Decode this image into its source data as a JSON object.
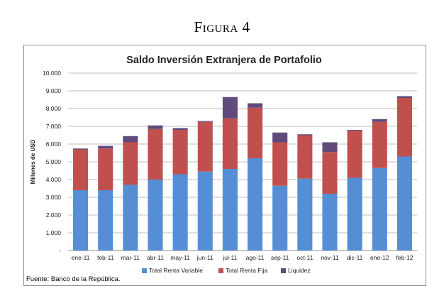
{
  "figure_label": "Figura 4",
  "source_note": "Fuente: Banco de la República.",
  "chart_data": {
    "type": "bar",
    "stacked": true,
    "title": "Saldo Inversión Extranjera de Portafolio",
    "xlabel": "",
    "ylabel": "Millones de USD",
    "ylim": [
      0,
      10000
    ],
    "yticks": [
      "-",
      "1.000",
      "2.000",
      "3.000",
      "4.000",
      "5.000",
      "6.000",
      "7.000",
      "8.000",
      "9.000",
      "10.000"
    ],
    "categories": [
      "ene-11",
      "feb-11",
      "mar-11",
      "abr-11",
      "may-11",
      "jun-11",
      "jul-11",
      "ago-11",
      "sep-11",
      "oct-11",
      "nov-11",
      "dic-11",
      "ene-12",
      "feb-12"
    ],
    "series": [
      {
        "name": "Total Renta Variable",
        "color": "#558ed5",
        "values": [
          3400,
          3400,
          3700,
          4000,
          4300,
          4450,
          4600,
          5200,
          3650,
          4050,
          3200,
          4100,
          4650,
          5300
        ]
      },
      {
        "name": "Total Renta Fija",
        "color": "#c0504d",
        "values": [
          2300,
          2350,
          2400,
          2850,
          2500,
          2800,
          2850,
          2850,
          2450,
          2450,
          2350,
          2650,
          2600,
          3300
        ]
      },
      {
        "name": "Liquidez",
        "color": "#604a7b",
        "values": [
          50,
          150,
          350,
          200,
          100,
          50,
          1200,
          250,
          550,
          50,
          550,
          50,
          150,
          100
        ]
      }
    ],
    "grid": true,
    "legend": "bottom"
  }
}
